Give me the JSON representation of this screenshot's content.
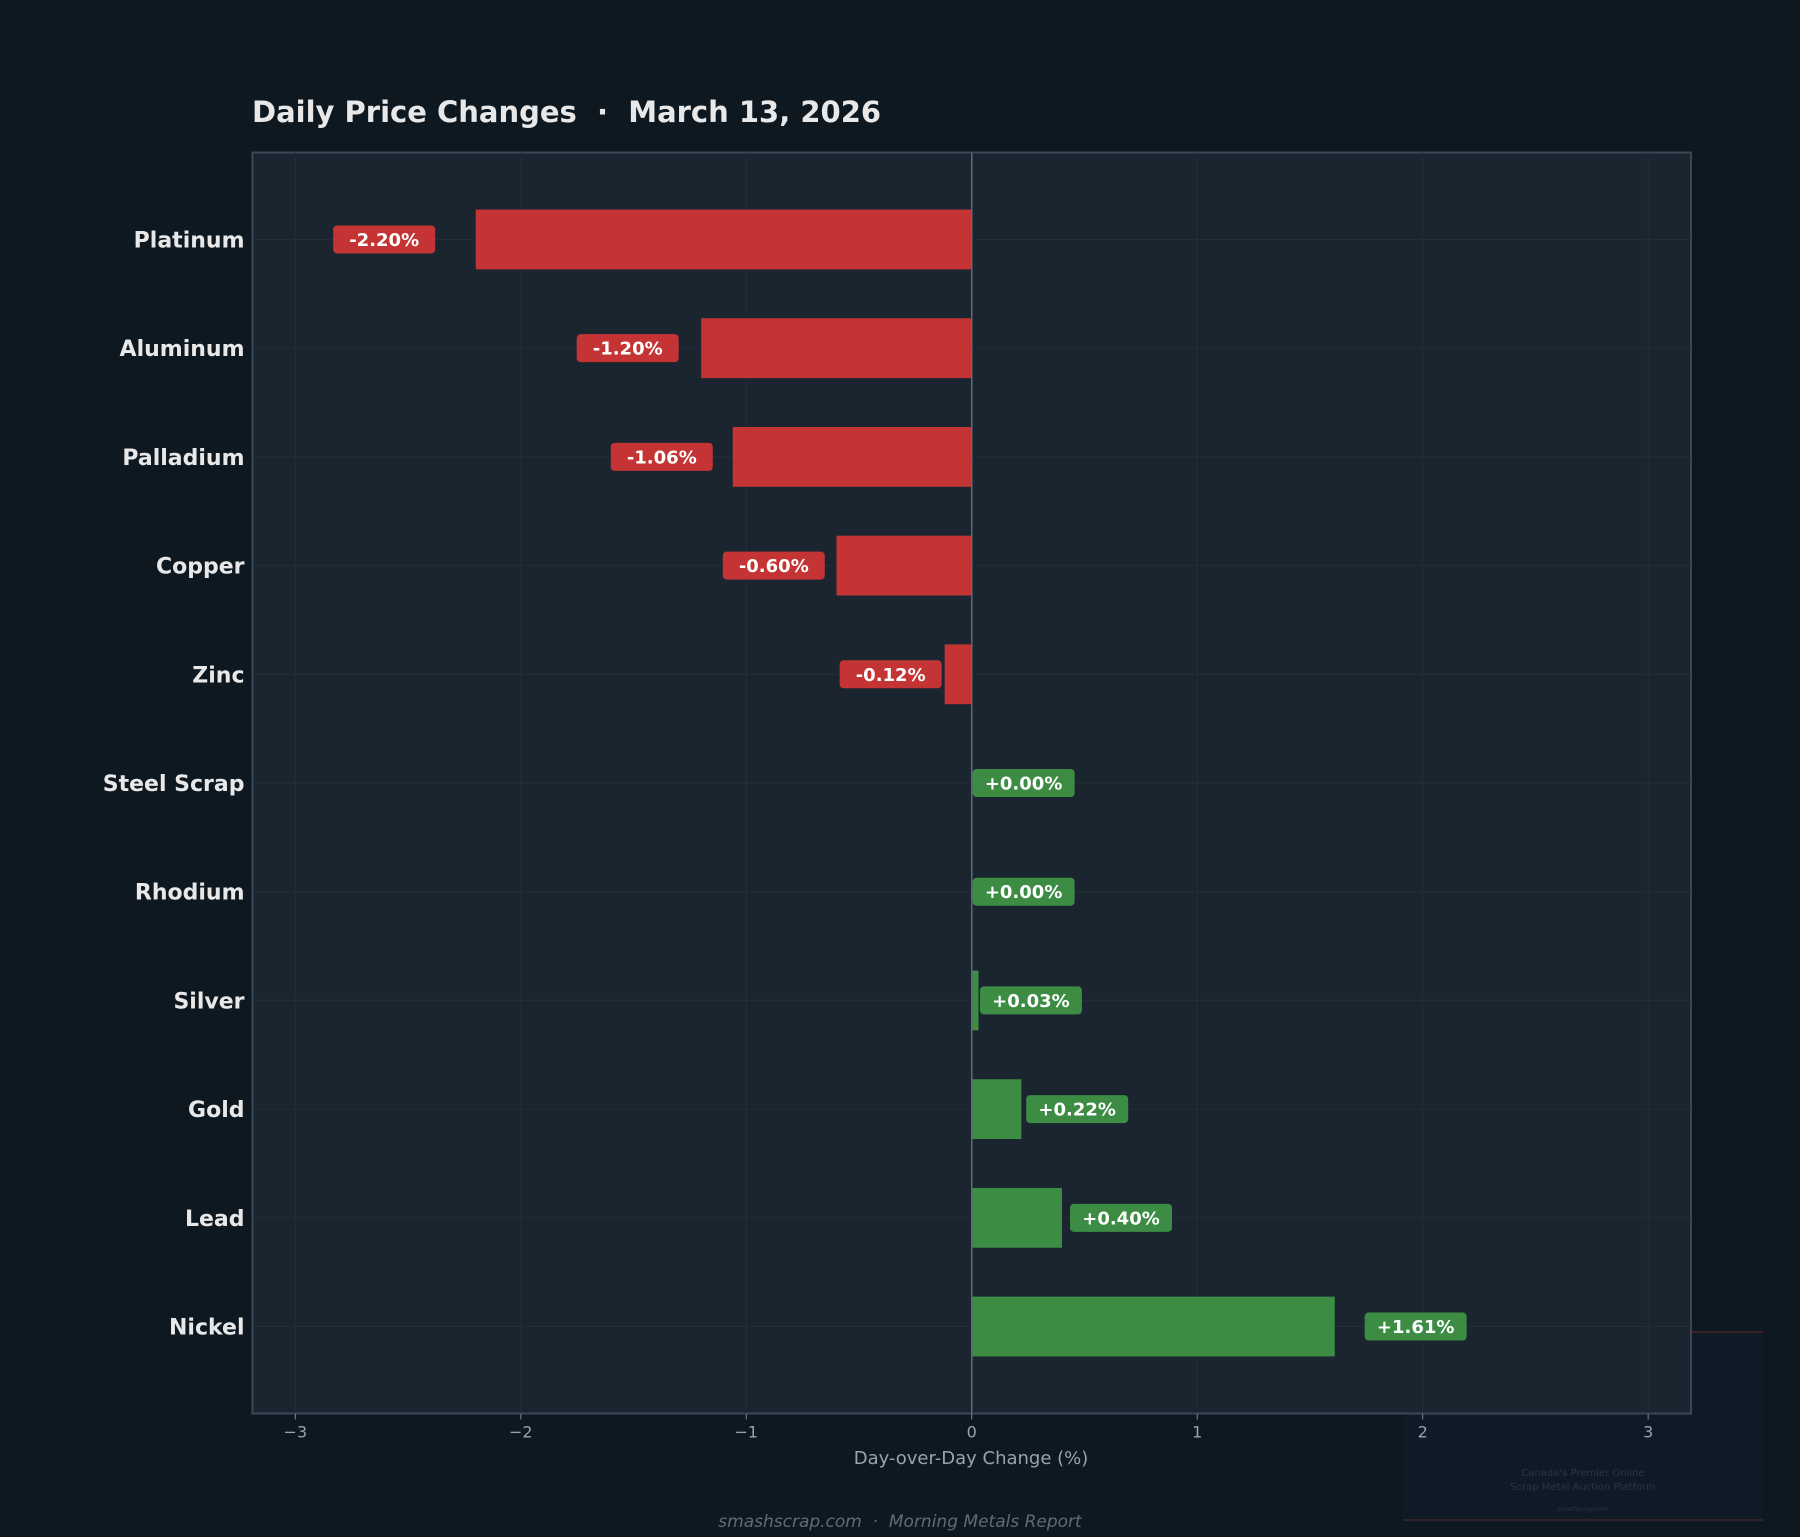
{
  "chart_data": {
    "type": "bar",
    "orientation": "horizontal",
    "title": "Daily Price Changes  ·  March 13, 2026",
    "xlabel": "Day-over-Day Change (%)",
    "ylabel": "",
    "categories": [
      "Platinum",
      "Aluminum",
      "Palladium",
      "Copper",
      "Zinc",
      "Steel Scrap",
      "Rhodium",
      "Silver",
      "Gold",
      "Lead",
      "Nickel"
    ],
    "values": [
      -2.2,
      -1.2,
      -1.06,
      -0.6,
      -0.12,
      0.0,
      0.0,
      0.03,
      0.22,
      0.4,
      1.61
    ],
    "data_labels": [
      "-2.20%",
      "-1.20%",
      "-1.06%",
      "-0.60%",
      "-0.12%",
      "+0.00%",
      "+0.00%",
      "+0.03%",
      "+0.22%",
      "+0.40%",
      "+1.61%"
    ],
    "xlim": [
      -3.19,
      3.19
    ],
    "xticks": [
      -3,
      -2,
      -1,
      0,
      1,
      2,
      3
    ],
    "xtick_labels": [
      "−3",
      "−2",
      "−1",
      "0",
      "1",
      "2",
      "3"
    ],
    "grid": true,
    "colors": {
      "negative": "#c53434",
      "positive": "#3c8c44",
      "background": "#0e1821",
      "plot_background": "#1b2530"
    }
  },
  "footer": "smashscrap.com  ·  Morning Metals Report",
  "watermark": {
    "line1": "Canada's Premier Online",
    "line2": "Scrap Metal Auction Platform",
    "site": "smashscrap.com"
  }
}
